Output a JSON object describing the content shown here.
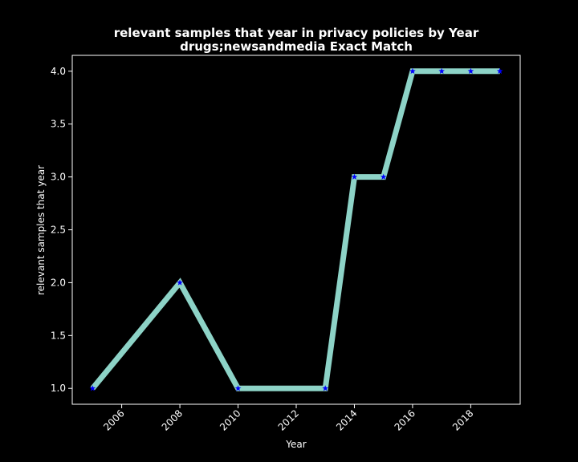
{
  "chart_data": {
    "type": "line",
    "title": "relevant samples that year in privacy policies by Year",
    "subtitle": "drugs;newsandmedia Exact Match",
    "xlabel": "Year",
    "ylabel": "relevant samples that year",
    "x": [
      2005,
      2008,
      2010,
      2013,
      2014,
      2015,
      2016,
      2017,
      2018,
      2019
    ],
    "series": [
      {
        "values": [
          1,
          2,
          1,
          1,
          3,
          3,
          4,
          4,
          4,
          4
        ]
      }
    ],
    "xlim": [
      2004.3,
      2019.7
    ],
    "ylim": [
      0.85,
      4.15
    ],
    "xticks": [
      2006,
      2008,
      2010,
      2012,
      2014,
      2016,
      2018
    ],
    "yticks": [
      "1.0",
      "1.5",
      "2.0",
      "2.5",
      "3.0",
      "3.5",
      "4.0"
    ],
    "grid": false,
    "colors": {
      "background": "#000000",
      "line": "#8dd3c7",
      "marker": "#0000ff",
      "text": "#ffffff"
    }
  }
}
